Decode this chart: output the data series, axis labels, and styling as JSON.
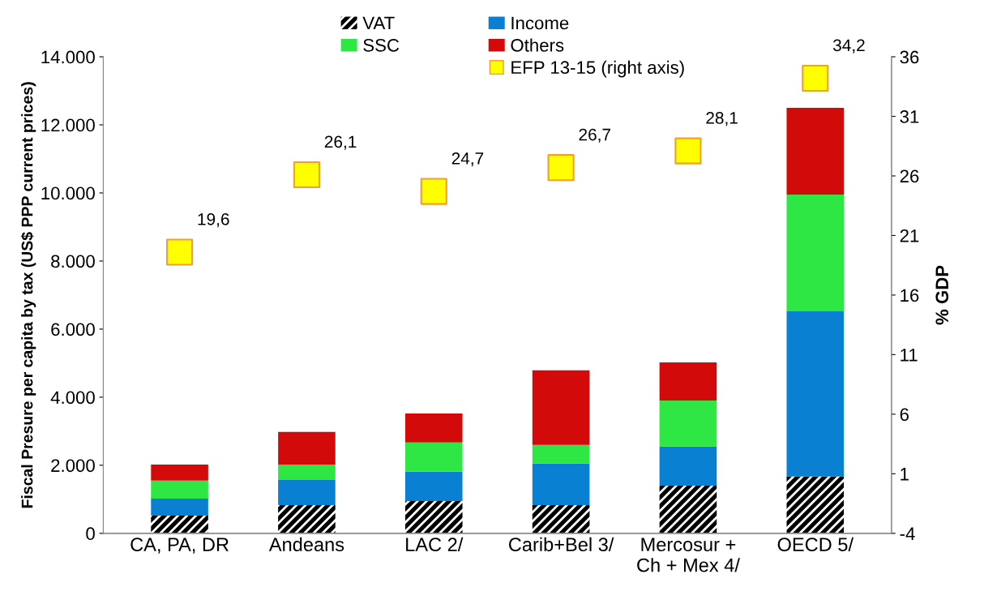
{
  "chart_data": {
    "type": "bar",
    "stacked": true,
    "categories": [
      "CA, PA, DR",
      "Andeans",
      "LAC 2/",
      "Carib+Bel 3/",
      "Mercosur +\nCh + Mex 4/",
      "OECD 5/"
    ],
    "ylabel": "Fiscal Presure per capita by tax (US$ PPP current prices)",
    "y2label": "% GDP",
    "ylim": [
      0,
      14000
    ],
    "yticks": [
      0,
      {
        "value": 2000,
        "label": "2.000"
      },
      {
        "value": 4000,
        "label": "4.000"
      },
      {
        "value": 6000,
        "label": "6.000"
      },
      {
        "value": 8000,
        "label": "8.000"
      },
      {
        "value": 10000,
        "label": "10.000"
      },
      {
        "value": 12000,
        "label": "12.000"
      },
      {
        "value": 14000,
        "label": "14.000"
      }
    ],
    "y2lim": [
      -4,
      36
    ],
    "y2ticks": [
      -4,
      1,
      6,
      11,
      16,
      21,
      26,
      31,
      36
    ],
    "series": [
      {
        "name": "VAT",
        "color": "#000000",
        "values": [
          520,
          830,
          950,
          830,
          1400,
          1670
        ]
      },
      {
        "name": "Income",
        "color": "#0a80d2",
        "values": [
          500,
          740,
          860,
          1220,
          1150,
          4850
        ]
      },
      {
        "name": "SSC",
        "color": "#2ee644",
        "values": [
          530,
          450,
          860,
          550,
          1350,
          3430
        ]
      },
      {
        "name": "Others",
        "color": "#d20a0a",
        "values": [
          470,
          960,
          850,
          2190,
          1120,
          2550
        ]
      },
      {
        "name": "EFP 13-15 (right axis)",
        "type": "scatter",
        "axis": "y2",
        "marker": "square",
        "color": "#ffff00",
        "values": [
          19.6,
          26.1,
          24.7,
          26.7,
          28.1,
          34.2
        ],
        "value_labels": [
          "19,6",
          "26,1",
          "24,7",
          "26,7",
          "28,1",
          "34,2"
        ]
      }
    ],
    "legend": "top",
    "grid": false
  }
}
